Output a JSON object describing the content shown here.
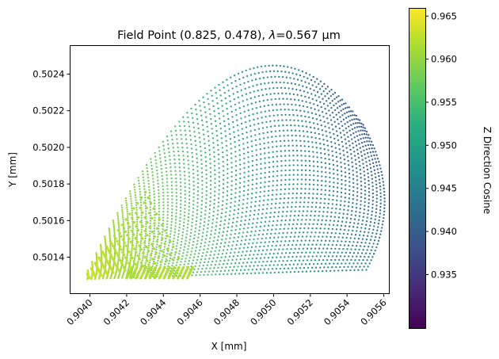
{
  "chart_data": {
    "type": "scatter",
    "title_prefix": "Field Point (0.825, 0.478), ",
    "title_symbol": "λ",
    "title_suffix": "=0.567 µm",
    "xlabel": "X [mm]",
    "ylabel": "Y [mm]",
    "xlim": [
      0.903892,
      0.90563
    ],
    "ylim": [
      0.501201,
      0.502556
    ],
    "xticks": [
      0.904,
      0.9042,
      0.9044,
      0.9046,
      0.9048,
      0.905,
      0.9052,
      0.9054,
      0.9056
    ],
    "xtick_labels": [
      "0.9040",
      "0.9042",
      "0.9044",
      "0.9046",
      "0.9048",
      "0.9050",
      "0.9052",
      "0.9054",
      "0.9056"
    ],
    "yticks": [
      0.5014,
      0.5016,
      0.5018,
      0.502,
      0.5022,
      0.5024
    ],
    "ytick_labels": [
      "0.5014",
      "0.5016",
      "0.5018",
      "0.5020",
      "0.5022",
      "0.5024"
    ],
    "grid": false,
    "colorbar": {
      "label": "Z Direction Cosine",
      "colormap": "viridis",
      "range": [
        0.92874,
        0.9659
      ],
      "ticks": [
        0.935,
        0.94,
        0.945,
        0.95,
        0.955,
        0.96,
        0.965
      ],
      "tick_labels": [
        "0.935",
        "0.940",
        "0.945",
        "0.950",
        "0.955",
        "0.960",
        "0.965"
      ]
    },
    "main_spot_patch": {
      "control_points_x_y": [
        [
          [
            0.903965,
            0.501279
          ],
          [
            0.90472,
            0.501309
          ],
          [
            0.905505,
            0.501331
          ]
        ],
        [
          [
            0.903965,
            0.501279
          ],
          [
            0.904936,
            0.501937
          ],
          [
            0.905712,
            0.501716
          ]
        ],
        [
          [
            0.903965,
            0.501279
          ],
          [
            0.904806,
            0.503062
          ],
          [
            0.905488,
            0.502123
          ]
        ]
      ],
      "z_apex": 0.963,
      "z_far": 0.945,
      "z_top_far": 0.938
    },
    "fold_patch": {
      "apex": [
        0.903965,
        0.501279
      ],
      "edge": [
        [
          0.904302,
          0.501755
        ],
        [
          0.904483,
          0.501396
        ]
      ],
      "z_range": [
        0.9635,
        0.959
      ]
    },
    "streaks": {
      "x_range": [
        0.9042,
        0.90453
      ],
      "y_start": 0.501285,
      "y_end": 0.501345,
      "z": 0.962
    }
  }
}
